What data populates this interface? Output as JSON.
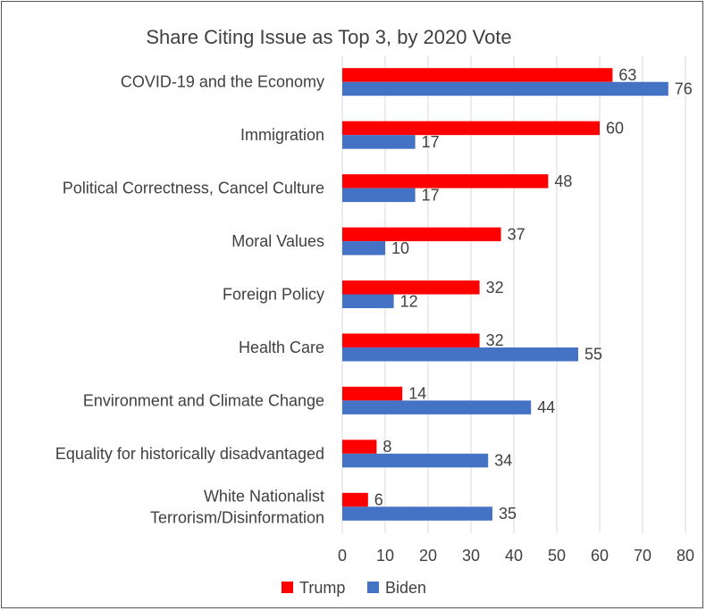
{
  "chart_data": {
    "type": "bar",
    "orientation": "horizontal",
    "title": "Share Citing Issue as Top 3, by 2020 Vote",
    "categories": [
      [
        "COVID-19 and the Economy"
      ],
      [
        "Immigration"
      ],
      [
        "Political Correctness, Cancel Culture"
      ],
      [
        "Moral Values"
      ],
      [
        "Foreign Policy"
      ],
      [
        "Health Care"
      ],
      [
        "Environment and Climate Change"
      ],
      [
        "Equality for historically disadvantaged"
      ],
      [
        "White Nationalist",
        "Terrorism/Disinformation"
      ]
    ],
    "series": [
      {
        "name": "Trump",
        "color": "#ff0000",
        "values": [
          63,
          60,
          48,
          37,
          32,
          32,
          14,
          8,
          6
        ]
      },
      {
        "name": "Biden",
        "color": "#4472c4",
        "values": [
          76,
          17,
          17,
          10,
          12,
          55,
          44,
          34,
          35
        ]
      }
    ],
    "xlim": [
      0,
      80
    ],
    "xticks": [
      "0",
      "10",
      "20",
      "30",
      "40",
      "50",
      "60",
      "70",
      "80"
    ],
    "grid": true,
    "legend": "bottom",
    "text_color": "#404040",
    "grid_color": "#d9d9d9"
  }
}
